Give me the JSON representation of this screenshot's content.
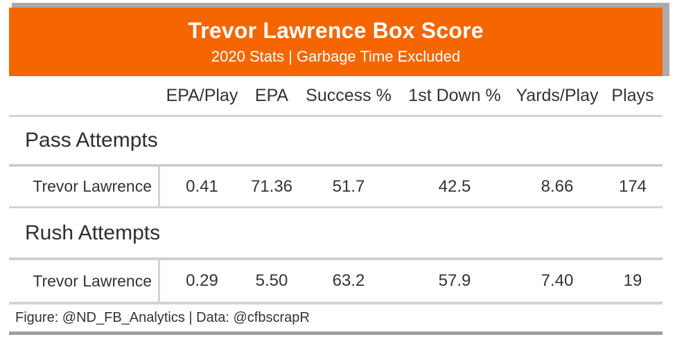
{
  "header": {
    "title": "Trevor Lawrence Box Score",
    "subtitle": "2020 Stats | Garbage Time Excluded"
  },
  "table": {
    "columns": [
      "EPA/Play",
      "EPA",
      "Success %",
      "1st Down %",
      "Yards/Play",
      "Plays"
    ],
    "sections": [
      {
        "label": "Pass Attempts",
        "rows": [
          {
            "name": "Trevor Lawrence",
            "values": [
              "0.41",
              "71.36",
              "51.7",
              "42.5",
              "8.66",
              "174"
            ]
          }
        ]
      },
      {
        "label": "Rush Attempts",
        "rows": [
          {
            "name": "Trevor Lawrence",
            "values": [
              "0.29",
              "5.50",
              "63.2",
              "57.9",
              "7.40",
              "19"
            ]
          }
        ]
      }
    ]
  },
  "footer": {
    "source_note": "Figure: @ND_FB_Analytics | Data: @cfbscrapR"
  },
  "colors": {
    "accent": "#F56600",
    "shadow": "#ABABAB",
    "line_light": "#D3D3D3",
    "line_mid": "#CFCFCF",
    "line_dark": "#9E9E9E",
    "text": "#333333"
  },
  "chart_data": {
    "type": "table",
    "title": "Trevor Lawrence Box Score",
    "subtitle": "2020 Stats | Garbage Time Excluded",
    "columns": [
      "",
      "EPA/Play",
      "EPA",
      "Success %",
      "1st Down %",
      "Yards/Play",
      "Plays"
    ],
    "groups": [
      {
        "name": "Pass Attempts",
        "rows": [
          [
            "Trevor Lawrence",
            0.41,
            71.36,
            51.7,
            42.5,
            8.66,
            174
          ]
        ]
      },
      {
        "name": "Rush Attempts",
        "rows": [
          [
            "Trevor Lawrence",
            0.29,
            5.5,
            63.2,
            57.9,
            7.4,
            19
          ]
        ]
      }
    ],
    "source_note": "Figure: @ND_FB_Analytics | Data: @cfbscrapR",
    "layout": {
      "value_alignment": "center",
      "stub_alignment": "right",
      "grid": "horizontal-rules-only"
    }
  }
}
